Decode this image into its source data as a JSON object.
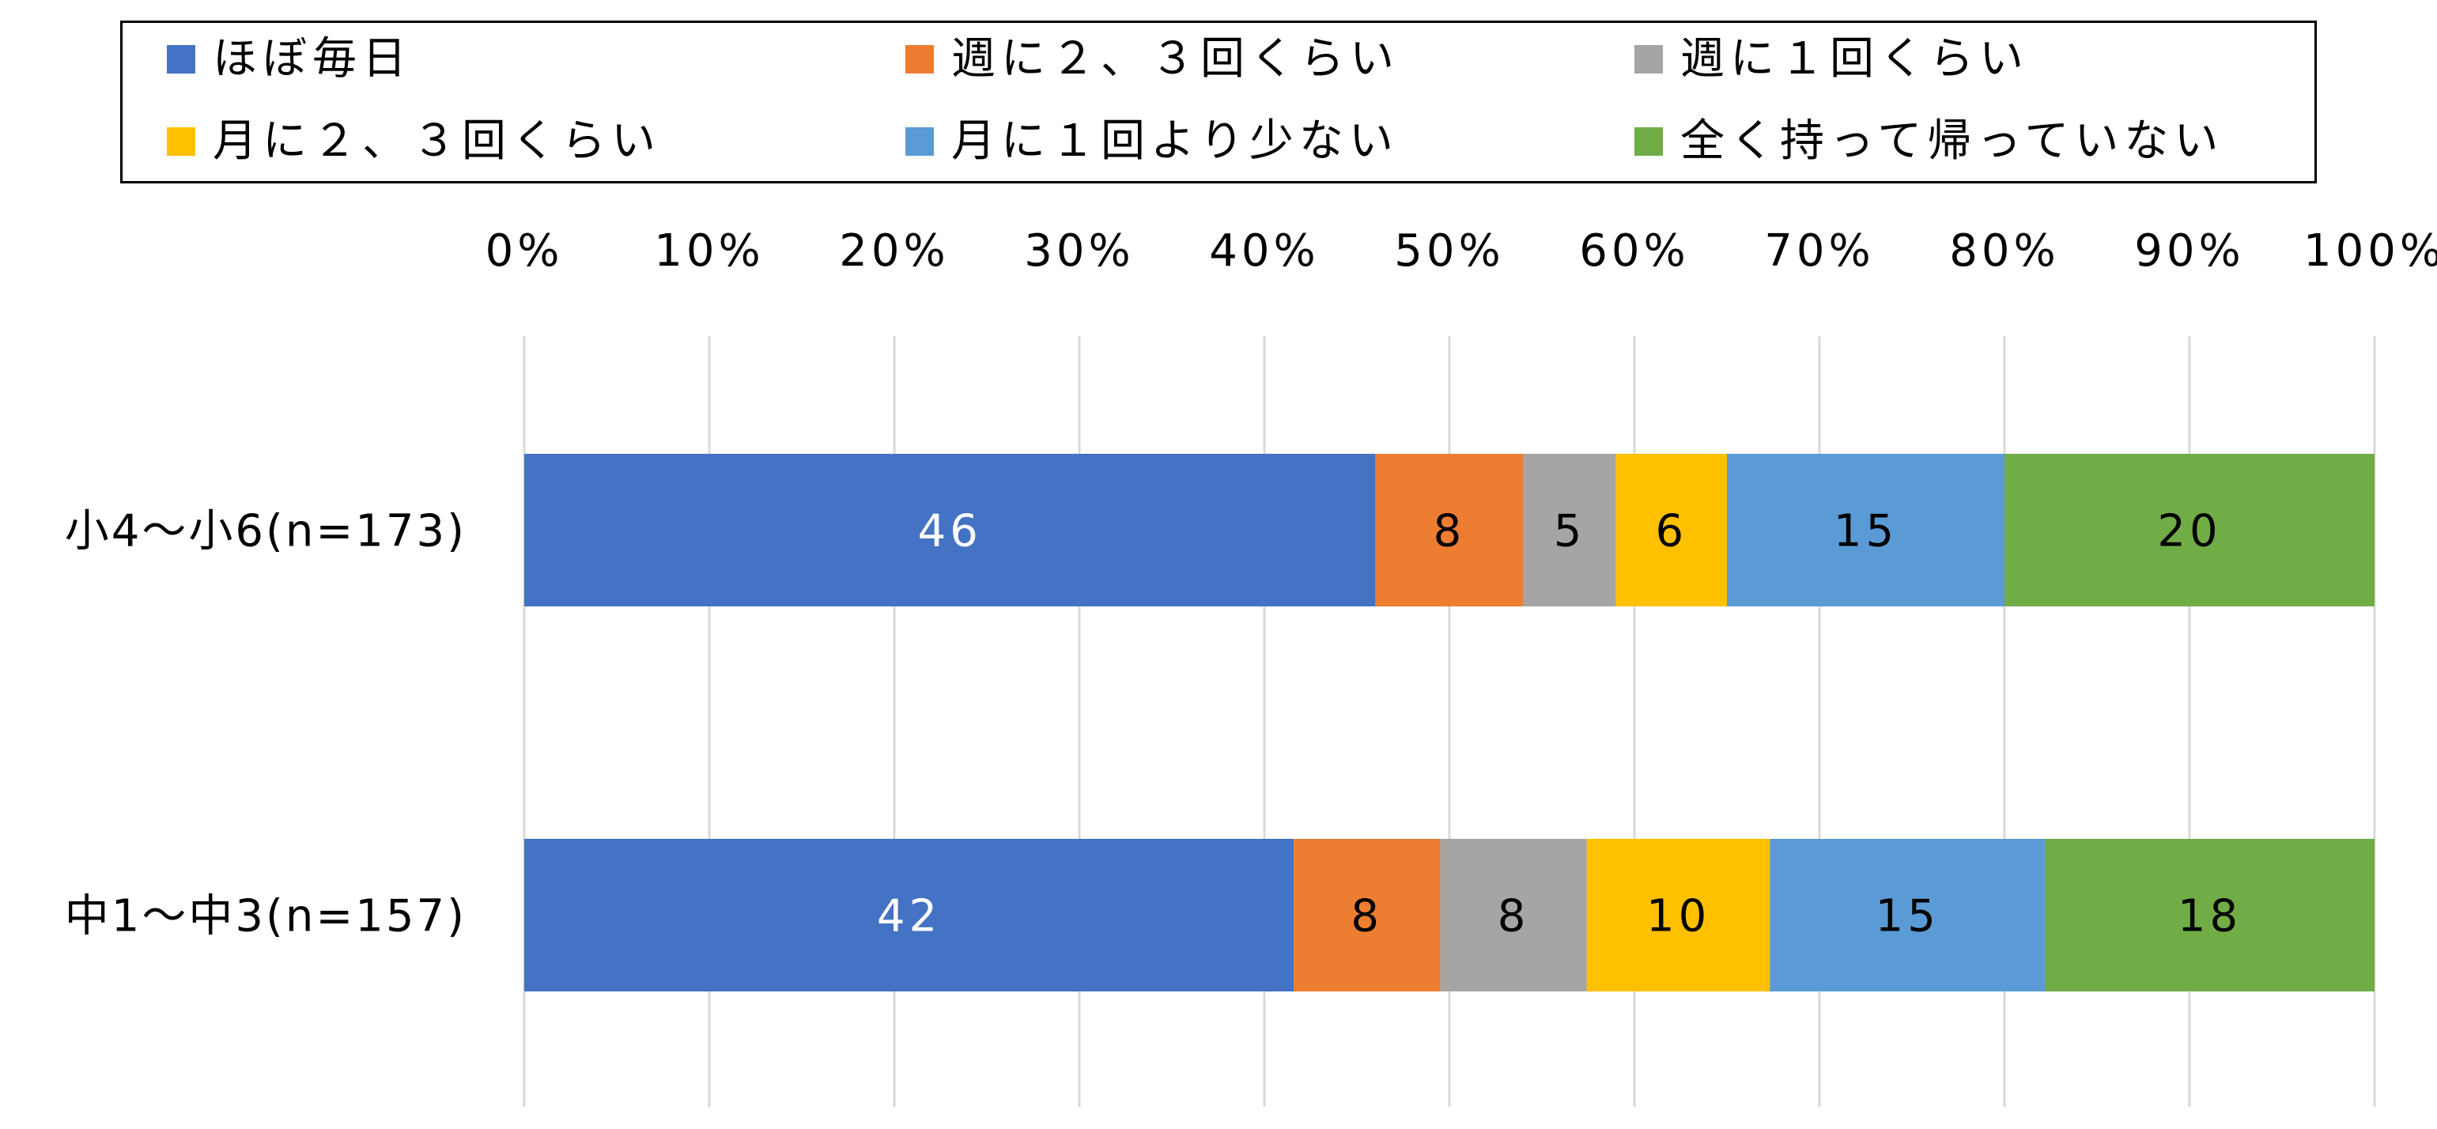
{
  "chart_data": {
    "type": "bar",
    "orientation": "horizontal",
    "stacked": true,
    "percent_stacked": true,
    "title": "",
    "xlabel": "",
    "ylabel": "",
    "xlim": [
      0,
      100
    ],
    "x_ticks": [
      "0%",
      "10%",
      "20%",
      "30%",
      "40%",
      "50%",
      "60%",
      "70%",
      "80%",
      "90%",
      "100%"
    ],
    "grid": "vertical",
    "legend_position": "top",
    "categories": [
      "小4～小6(n=173)",
      "中1～中3(n=157)"
    ],
    "series": [
      {
        "name": "ほぼ毎日",
        "color": "#4472C4",
        "label_color": "#ffffff",
        "values": [
          46,
          42
        ]
      },
      {
        "name": "週に２、３回くらい",
        "color": "#ED7D31",
        "label_color": "#000000",
        "values": [
          8,
          8
        ]
      },
      {
        "name": "週に１回くらい",
        "color": "#A5A5A5",
        "label_color": "#000000",
        "values": [
          5,
          8
        ]
      },
      {
        "name": "月に２、３回くらい",
        "color": "#FFC000",
        "label_color": "#000000",
        "values": [
          6,
          10
        ]
      },
      {
        "name": "月に１回より少ない",
        "color": "#5B9BD5",
        "label_color": "#000000",
        "values": [
          15,
          15
        ]
      },
      {
        "name": "全く持って帰っていない",
        "color": "#70AD47",
        "label_color": "#000000",
        "values": [
          20,
          18
        ]
      }
    ]
  }
}
